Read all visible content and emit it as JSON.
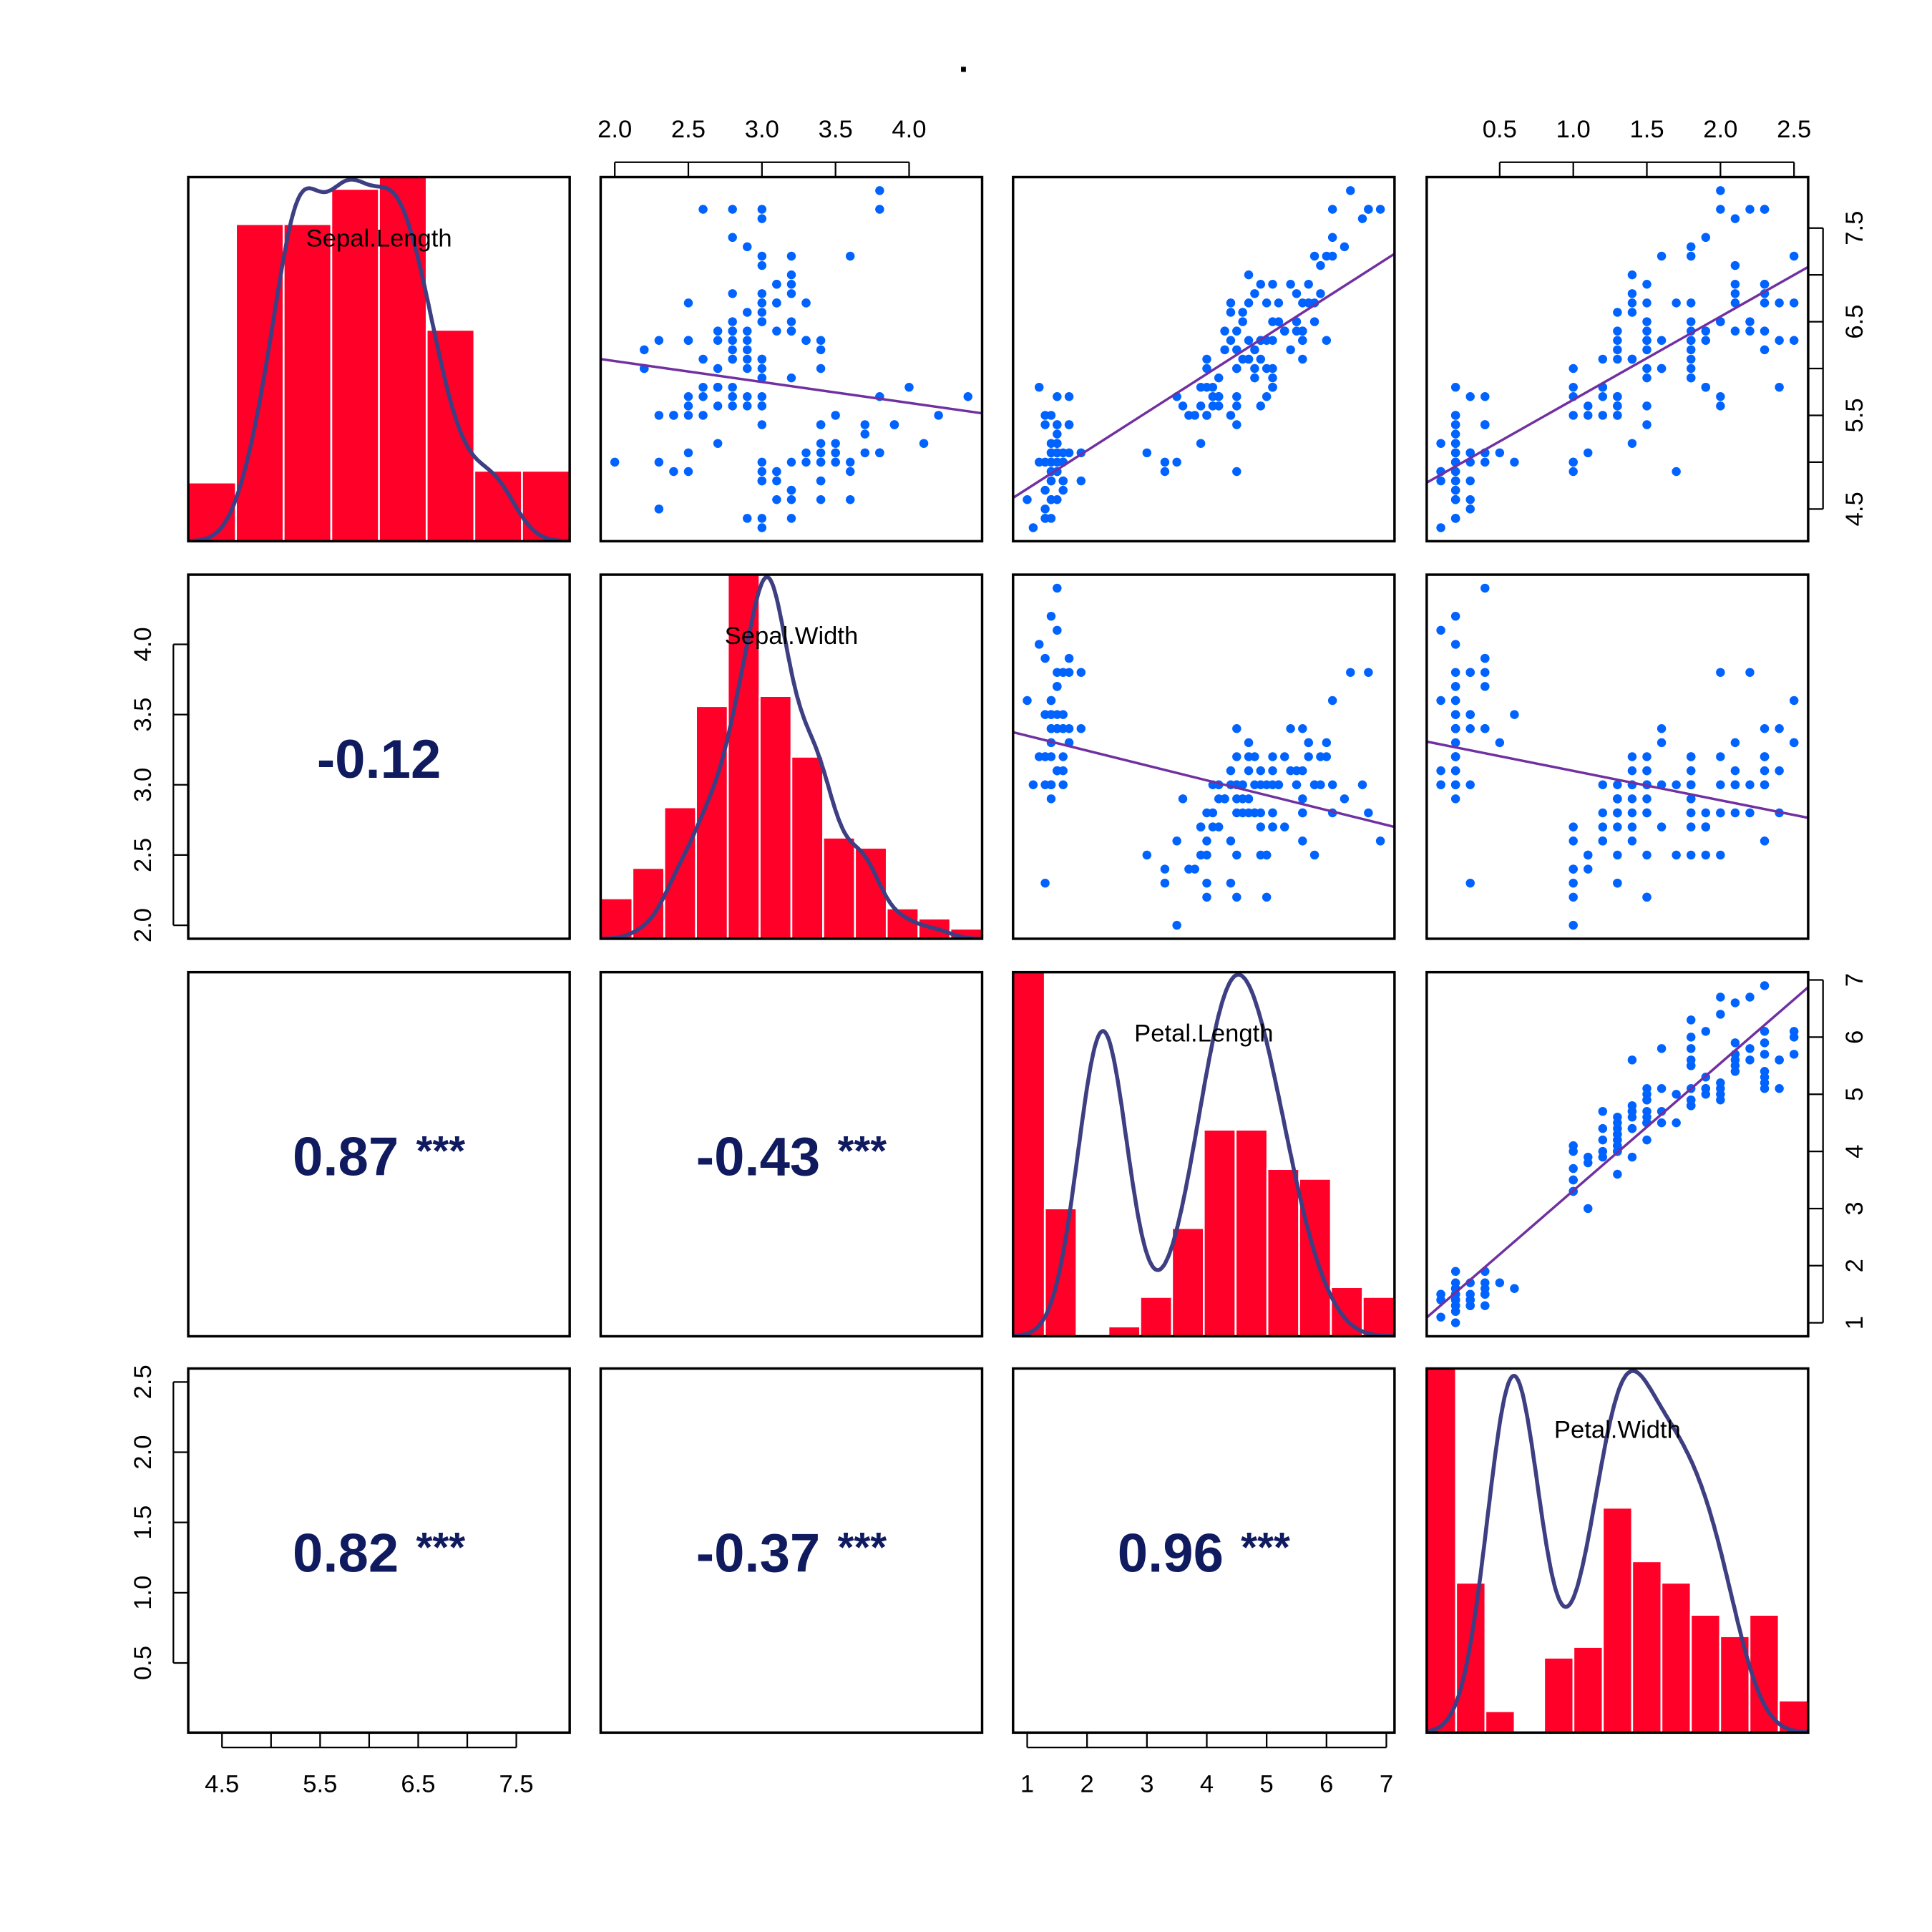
{
  "chart_data": {
    "type": "scatter",
    "title": ".",
    "layout": "scatterplot-matrix",
    "variables": [
      "Sepal.Length",
      "Sepal.Width",
      "Petal.Length",
      "Petal.Width"
    ],
    "data": {
      "Sepal.Length": [
        5.1,
        4.9,
        4.7,
        4.6,
        5.0,
        5.4,
        4.6,
        5.0,
        4.4,
        4.9,
        5.4,
        4.8,
        4.8,
        4.3,
        5.8,
        5.7,
        5.4,
        5.1,
        5.7,
        5.1,
        5.4,
        5.1,
        4.6,
        5.1,
        4.8,
        5.0,
        5.0,
        5.2,
        5.2,
        4.7,
        4.8,
        5.4,
        5.2,
        5.5,
        4.9,
        5.0,
        5.5,
        4.9,
        4.4,
        5.1,
        5.0,
        4.5,
        4.4,
        5.0,
        5.1,
        4.8,
        5.1,
        4.6,
        5.3,
        5.0,
        7.0,
        6.4,
        6.9,
        5.5,
        6.5,
        5.7,
        6.3,
        4.9,
        6.6,
        5.2,
        5.0,
        5.9,
        6.0,
        6.1,
        5.6,
        6.7,
        5.6,
        5.8,
        6.2,
        5.6,
        5.9,
        6.1,
        6.3,
        6.1,
        6.4,
        6.6,
        6.8,
        6.7,
        6.0,
        5.7,
        5.5,
        5.5,
        5.8,
        6.0,
        5.4,
        6.0,
        6.7,
        6.3,
        5.6,
        5.5,
        5.5,
        6.1,
        5.8,
        5.0,
        5.6,
        5.7,
        5.7,
        6.2,
        5.1,
        5.7,
        6.3,
        5.8,
        7.1,
        6.3,
        6.5,
        7.6,
        4.9,
        7.3,
        6.7,
        7.2,
        6.5,
        6.4,
        6.8,
        5.7,
        5.8,
        6.4,
        6.5,
        7.7,
        7.7,
        6.0,
        6.9,
        5.6,
        7.7,
        6.3,
        6.7,
        7.2,
        6.2,
        6.1,
        6.4,
        7.2,
        7.4,
        7.9,
        6.4,
        6.3,
        6.1,
        7.7,
        6.3,
        6.4,
        6.0,
        6.9,
        6.7,
        6.9,
        5.8,
        6.8,
        6.7,
        6.7,
        6.3,
        6.5,
        6.2,
        5.9
      ],
      "Sepal.Width": [
        3.5,
        3.0,
        3.2,
        3.1,
        3.6,
        3.9,
        3.4,
        3.4,
        2.9,
        3.1,
        3.7,
        3.4,
        3.0,
        3.0,
        4.0,
        4.4,
        3.9,
        3.5,
        3.8,
        3.8,
        3.4,
        3.7,
        3.6,
        3.3,
        3.4,
        3.0,
        3.4,
        3.5,
        3.4,
        3.2,
        3.1,
        3.4,
        4.1,
        4.2,
        3.1,
        3.2,
        3.5,
        3.6,
        3.0,
        3.4,
        3.5,
        2.3,
        3.2,
        3.5,
        3.8,
        3.0,
        3.8,
        3.2,
        3.7,
        3.3,
        3.2,
        3.2,
        3.1,
        2.3,
        2.8,
        2.8,
        3.3,
        2.4,
        2.9,
        2.7,
        2.0,
        3.0,
        2.2,
        2.9,
        2.9,
        3.1,
        3.0,
        2.7,
        2.2,
        2.5,
        3.2,
        2.8,
        2.5,
        2.8,
        2.9,
        3.0,
        2.8,
        3.0,
        2.9,
        2.6,
        2.4,
        2.4,
        2.7,
        2.7,
        3.0,
        3.4,
        3.1,
        2.3,
        3.0,
        2.5,
        2.6,
        3.0,
        2.6,
        2.3,
        2.7,
        3.0,
        2.9,
        2.9,
        2.5,
        2.8,
        3.3,
        2.7,
        3.0,
        2.9,
        3.0,
        3.0,
        2.5,
        2.9,
        2.5,
        3.6,
        3.2,
        2.7,
        3.0,
        2.5,
        2.8,
        3.2,
        3.0,
        3.8,
        2.6,
        2.2,
        3.2,
        2.8,
        2.8,
        2.7,
        3.3,
        3.2,
        2.8,
        3.0,
        2.8,
        3.0,
        2.8,
        3.8,
        2.8,
        2.8,
        2.6,
        3.0,
        3.4,
        3.1,
        3.0,
        3.1,
        3.1,
        3.1,
        2.7,
        3.2,
        3.3,
        3.0,
        2.5,
        3.0,
        3.4,
        3.0
      ],
      "Petal.Length": [
        1.4,
        1.4,
        1.3,
        1.5,
        1.4,
        1.7,
        1.4,
        1.5,
        1.4,
        1.5,
        1.5,
        1.6,
        1.4,
        1.1,
        1.2,
        1.5,
        1.3,
        1.4,
        1.7,
        1.5,
        1.7,
        1.5,
        1.0,
        1.7,
        1.9,
        1.6,
        1.6,
        1.5,
        1.4,
        1.6,
        1.6,
        1.5,
        1.5,
        1.4,
        1.5,
        1.2,
        1.3,
        1.4,
        1.3,
        1.5,
        1.3,
        1.3,
        1.3,
        1.6,
        1.9,
        1.4,
        1.6,
        1.4,
        1.5,
        1.4,
        4.7,
        4.5,
        4.9,
        4.0,
        4.6,
        4.5,
        4.7,
        3.3,
        4.6,
        3.9,
        3.5,
        4.2,
        4.0,
        4.7,
        3.6,
        4.4,
        4.5,
        4.1,
        4.5,
        3.9,
        4.8,
        4.0,
        4.9,
        4.7,
        4.3,
        4.4,
        4.8,
        5.0,
        4.5,
        3.5,
        3.8,
        3.7,
        3.9,
        5.1,
        4.5,
        4.5,
        4.7,
        4.4,
        4.1,
        4.0,
        4.4,
        4.6,
        4.0,
        3.3,
        4.2,
        4.2,
        4.2,
        4.3,
        3.0,
        4.1,
        6.0,
        5.1,
        5.9,
        5.6,
        5.8,
        6.6,
        4.5,
        6.3,
        5.8,
        6.1,
        5.1,
        5.3,
        5.5,
        5.0,
        5.1,
        5.3,
        5.5,
        6.7,
        6.9,
        5.0,
        5.7,
        4.9,
        6.7,
        4.9,
        5.7,
        6.0,
        4.8,
        4.9,
        5.6,
        5.8,
        6.1,
        6.4,
        5.6,
        5.1,
        5.6,
        6.1,
        5.6,
        5.5,
        4.8,
        5.4,
        5.6,
        5.1,
        5.1,
        5.9,
        5.7,
        5.2,
        5.0,
        5.2,
        5.4,
        5.1
      ],
      "Petal.Width": [
        0.2,
        0.2,
        0.2,
        0.2,
        0.2,
        0.4,
        0.3,
        0.2,
        0.2,
        0.1,
        0.2,
        0.2,
        0.1,
        0.1,
        0.2,
        0.4,
        0.4,
        0.3,
        0.3,
        0.3,
        0.2,
        0.4,
        0.2,
        0.5,
        0.2,
        0.2,
        0.4,
        0.2,
        0.2,
        0.2,
        0.2,
        0.4,
        0.1,
        0.2,
        0.2,
        0.2,
        0.2,
        0.1,
        0.2,
        0.2,
        0.3,
        0.3,
        0.2,
        0.6,
        0.4,
        0.3,
        0.2,
        0.2,
        0.2,
        0.2,
        1.4,
        1.5,
        1.5,
        1.3,
        1.5,
        1.3,
        1.6,
        1.0,
        1.3,
        1.4,
        1.0,
        1.5,
        1.0,
        1.4,
        1.3,
        1.4,
        1.5,
        1.0,
        1.5,
        1.1,
        1.8,
        1.3,
        1.5,
        1.2,
        1.3,
        1.4,
        1.4,
        1.7,
        1.5,
        1.0,
        1.1,
        1.0,
        1.2,
        1.6,
        1.5,
        1.6,
        1.5,
        1.3,
        1.3,
        1.3,
        1.2,
        1.4,
        1.2,
        1.0,
        1.3,
        1.2,
        1.3,
        1.3,
        1.1,
        1.3,
        2.5,
        1.9,
        2.1,
        1.8,
        2.2,
        2.1,
        1.7,
        1.8,
        1.8,
        2.5,
        2.0,
        1.9,
        2.1,
        2.0,
        2.4,
        2.3,
        1.8,
        2.2,
        2.3,
        1.5,
        2.3,
        2.0,
        2.0,
        1.8,
        2.1,
        1.8,
        1.8,
        1.8,
        2.1,
        1.6,
        1.9,
        2.0,
        2.2,
        1.5,
        1.4,
        2.3,
        2.4,
        1.8,
        1.8,
        2.1,
        2.4,
        2.3,
        1.9,
        2.3,
        2.5,
        2.3,
        1.9,
        2.0,
        2.3,
        1.8
      ]
    },
    "histogram_breaks": {
      "Sepal.Length": {
        "from": 4.0,
        "to": 8.0,
        "by": 0.5
      },
      "Sepal.Width": {
        "from": 2.0,
        "to": 4.4,
        "by": 0.2
      },
      "Petal.Length": {
        "from": 1.0,
        "to": 7.0,
        "by": 0.5
      },
      "Petal.Width": {
        "from": 0.0,
        "to": 2.6,
        "by": 0.2
      }
    },
    "correlations": [
      {
        "row": "Sepal.Width",
        "col": "Sepal.Length",
        "value": "-0.12",
        "stars": ""
      },
      {
        "row": "Petal.Length",
        "col": "Sepal.Length",
        "value": "0.87",
        "stars": "***"
      },
      {
        "row": "Petal.Length",
        "col": "Sepal.Width",
        "value": "-0.43",
        "stars": "***"
      },
      {
        "row": "Petal.Width",
        "col": "Sepal.Length",
        "value": "0.82",
        "stars": "***"
      },
      {
        "row": "Petal.Width",
        "col": "Sepal.Width",
        "value": "-0.37",
        "stars": "***"
      },
      {
        "row": "Petal.Width",
        "col": "Petal.Length",
        "value": "0.96",
        "stars": "***"
      }
    ],
    "axes": {
      "top": [
        {
          "col": "Sepal.Width",
          "ticks": [
            2.0,
            2.5,
            3.0,
            3.5,
            4.0
          ],
          "labels": [
            "2.0",
            "2.5",
            "3.0",
            "3.5",
            "4.0"
          ]
        },
        {
          "col": "Petal.Width",
          "ticks": [
            0.5,
            1.0,
            1.5,
            2.0,
            2.5
          ],
          "labels": [
            "0.5",
            "1.0",
            "1.5",
            "2.0",
            "2.5"
          ]
        }
      ],
      "bottom": [
        {
          "col": "Sepal.Length",
          "ticks": [
            4.5,
            5.0,
            5.5,
            6.0,
            6.5,
            7.0,
            7.5
          ],
          "labels": [
            "4.5",
            "",
            "5.5",
            "",
            "6.5",
            "",
            "7.5"
          ]
        },
        {
          "col": "Petal.Length",
          "ticks": [
            1,
            2,
            3,
            4,
            5,
            6,
            7
          ],
          "labels": [
            "1",
            "2",
            "3",
            "4",
            "5",
            "6",
            "7"
          ]
        }
      ],
      "right": [
        {
          "row": "Sepal.Length",
          "ticks": [
            4.5,
            5.0,
            5.5,
            6.0,
            6.5,
            7.0,
            7.5
          ],
          "labels": [
            "4.5",
            "",
            "5.5",
            "",
            "6.5",
            "",
            "7.5"
          ]
        },
        {
          "row": "Petal.Length",
          "ticks": [
            1,
            2,
            3,
            4,
            5,
            6,
            7
          ],
          "labels": [
            "1",
            "2",
            "3",
            "4",
            "5",
            "6",
            "7"
          ]
        }
      ],
      "left": [
        {
          "row": "Sepal.Width",
          "ticks": [
            2.0,
            2.5,
            3.0,
            3.5,
            4.0
          ],
          "labels": [
            "2.0",
            "2.5",
            "3.0",
            "3.5",
            "4.0"
          ]
        },
        {
          "row": "Petal.Width",
          "ticks": [
            0.5,
            1.0,
            1.5,
            2.0,
            2.5
          ],
          "labels": [
            "0.5",
            "1.0",
            "1.5",
            "2.0",
            "2.5"
          ]
        }
      ]
    },
    "regression_line": "least-squares fit",
    "density": "gaussian kernel density",
    "colors": {
      "histogram_fill": "#ff0028",
      "histogram_border": "#ffffff",
      "density_line": "#3d3f82",
      "points": "#0063ff",
      "regression_line": "#7030a0",
      "correlation_text": "#0f1a5f"
    },
    "grid": false
  }
}
